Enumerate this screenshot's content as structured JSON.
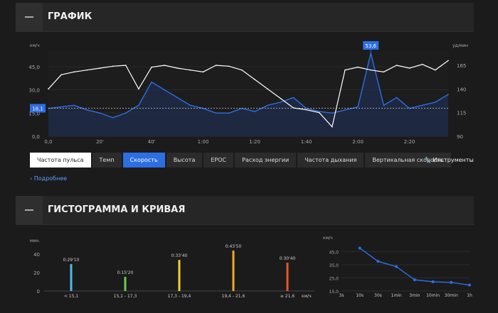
{
  "graph": {
    "title": "ГРАФИК",
    "left_unit": "км/ч",
    "right_unit": "уд/мин",
    "left_ticks": [
      "45,0",
      "30,0",
      "15,0",
      "0,0"
    ],
    "right_ticks": [
      "165",
      "140",
      "115",
      "90"
    ],
    "x_ticks": [
      "0,0",
      "20'",
      "40'",
      "1:00",
      "1:20",
      "1:40",
      "2:00",
      "2:20"
    ],
    "avg_marker": "18,1",
    "peak_marker": "53,6",
    "speed_color": "#2e6ee5",
    "hr_color": "#ffffff",
    "chart_data": {
      "type": "line",
      "title": "График",
      "x": [
        0,
        5,
        10,
        15,
        20,
        25,
        30,
        35,
        40,
        45,
        50,
        55,
        60,
        65,
        70,
        75,
        80,
        85,
        90,
        95,
        100,
        105,
        110,
        115,
        120,
        125,
        130,
        135,
        140,
        145,
        150,
        155
      ],
      "series": [
        {
          "name": "Частота пульса",
          "unit": "уд/мин",
          "values": [
            140,
            155,
            158,
            160,
            162,
            164,
            165,
            140,
            163,
            165,
            162,
            160,
            158,
            165,
            164,
            160,
            150,
            140,
            130,
            120,
            118,
            115,
            100,
            160,
            163,
            160,
            158,
            165,
            162,
            166,
            160,
            170
          ]
        },
        {
          "name": "Скорость",
          "unit": "км/ч",
          "values": [
            18,
            19,
            20,
            17,
            15,
            12,
            15,
            20,
            35,
            30,
            25,
            20,
            18,
            15,
            15,
            18,
            16,
            20,
            22,
            25,
            18,
            16,
            15,
            17,
            19,
            53.6,
            20,
            25,
            18,
            20,
            22,
            27
          ]
        }
      ],
      "avg_speed": 18.1,
      "peak_speed": 53.6,
      "ylim_left": [
        0,
        55
      ],
      "ylim_right": [
        90,
        180
      ]
    }
  },
  "tabs": [
    {
      "label": "Частота пульса",
      "style": "white"
    },
    {
      "label": "Темп",
      "style": "dark"
    },
    {
      "label": "Скорость",
      "style": "blue"
    },
    {
      "label": "Высота",
      "style": "dark"
    },
    {
      "label": "EPOC",
      "style": "dark"
    },
    {
      "label": "Расход энергии",
      "style": "dark"
    },
    {
      "label": "Частота дыхания",
      "style": "dark"
    },
    {
      "label": "Вертикальная скорость",
      "style": "dark"
    }
  ],
  "tools_label": "Инструменты",
  "more_label": "Подробнее",
  "histogram": {
    "title": "ГИСТОГРАММА И КРИВАЯ",
    "y_unit": "мин.",
    "y_ticks": [
      "40",
      "20",
      "0"
    ],
    "x_unit": "км/ч",
    "chart_data": {
      "type": "bar",
      "categories": [
        "< 15,1",
        "15,1 - 17,3",
        "17,3 - 19,4",
        "19,4 - 21,6",
        "≥ 21,6"
      ],
      "values": [
        29.17,
        15.33,
        33.67,
        43.83,
        30.67
      ],
      "labels": [
        "0:29'10",
        "0:15'20",
        "0:33'40",
        "0:43'50",
        "0:30'40"
      ],
      "colors": [
        "#4fb9e8",
        "#6ac94a",
        "#f0d03a",
        "#f5a623",
        "#e8572a"
      ],
      "ylim": [
        0,
        50
      ]
    }
  },
  "curve": {
    "y_unit": "км/ч",
    "y_ticks": [
      "45,0",
      "35,0",
      "25,0",
      "15,0"
    ],
    "chart_data": {
      "type": "line",
      "categories": [
        "3s",
        "10s",
        "30s",
        "1min",
        "3min",
        "10min",
        "30min",
        "1h"
      ],
      "values": [
        null,
        47.5,
        37.5,
        33.5,
        23.5,
        22,
        21.5,
        19.5
      ],
      "ylim": [
        15,
        50
      ]
    }
  }
}
